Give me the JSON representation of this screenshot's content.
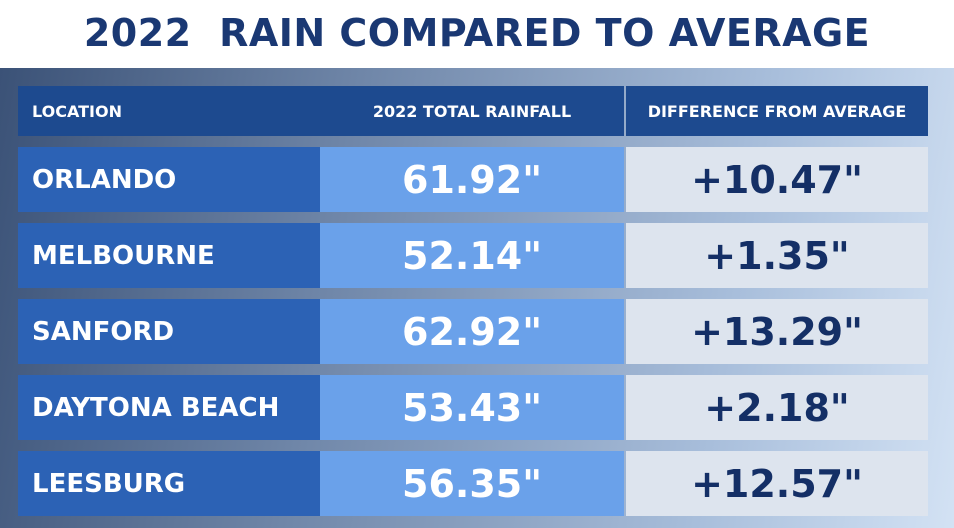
{
  "header": {
    "title": "2022  RAIN COMPARED TO AVERAGE"
  },
  "table": {
    "columns": [
      "LOCATION",
      "2022 TOTAL RAINFALL",
      "DIFFERENCE FROM AVERAGE"
    ],
    "rows": [
      [
        "ORLANDO",
        "61.92\"",
        "+10.47\""
      ],
      [
        "MELBOURNE",
        "52.14\"",
        "+1.35\""
      ],
      [
        "SANFORD",
        "62.92\"",
        "+13.29\""
      ],
      [
        "DAYTONA BEACH",
        "53.43\"",
        "+2.18\""
      ],
      [
        "LEESBURG",
        "56.35\"",
        "+12.57\""
      ]
    ]
  }
}
